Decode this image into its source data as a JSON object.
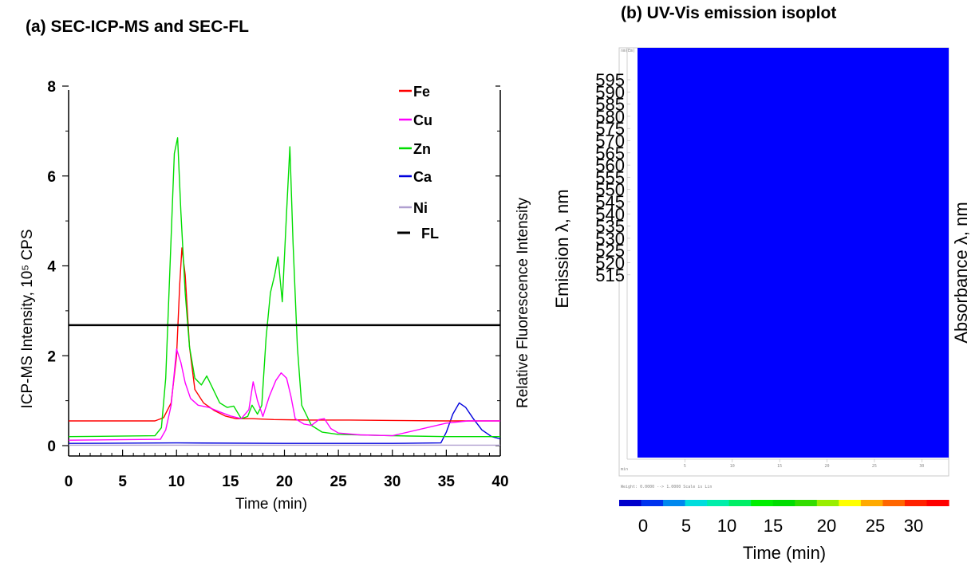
{
  "chart_data": [
    {
      "type": "line",
      "title": "(a) SEC-ICP-MS and SEC-FL",
      "xlabel": "Time (min)",
      "ylabel": "ICP-MS Intensity, 10⁵ CPS",
      "ylabel_right": "Relative Fluorescence Intensity",
      "xlim": [
        0,
        40
      ],
      "ylim": [
        0,
        8
      ],
      "x_ticks": [
        "0",
        "5",
        "10",
        "15",
        "20",
        "25",
        "30",
        "35",
        "40"
      ],
      "y_ticks": [
        "0",
        "2",
        "4",
        "6",
        "8"
      ],
      "legend_position": "top-right",
      "series": [
        {
          "name": "Fe",
          "color": "#ff0000",
          "points": [
            [
              0,
              0.55
            ],
            [
              8,
              0.55
            ],
            [
              8.8,
              0.62
            ],
            [
              9.5,
              0.95
            ],
            [
              10.0,
              2.0
            ],
            [
              10.3,
              3.6
            ],
            [
              10.5,
              4.4
            ],
            [
              10.8,
              3.8
            ],
            [
              11.2,
              2.2
            ],
            [
              11.7,
              1.25
            ],
            [
              12.5,
              0.95
            ],
            [
              13.5,
              0.78
            ],
            [
              14.5,
              0.66
            ],
            [
              15.5,
              0.6
            ],
            [
              17,
              0.6
            ],
            [
              19,
              0.58
            ],
            [
              22,
              0.57
            ],
            [
              26,
              0.57
            ],
            [
              30,
              0.56
            ],
            [
              35,
              0.55
            ],
            [
              40,
              0.55
            ]
          ]
        },
        {
          "name": "Cu",
          "color": "#ff00ff",
          "points": [
            [
              0,
              0.12
            ],
            [
              8.5,
              0.14
            ],
            [
              9.0,
              0.35
            ],
            [
              9.5,
              0.9
            ],
            [
              10.0,
              2.15
            ],
            [
              10.4,
              1.85
            ],
            [
              10.8,
              1.4
            ],
            [
              11.3,
              1.05
            ],
            [
              12,
              0.9
            ],
            [
              13,
              0.85
            ],
            [
              14,
              0.75
            ],
            [
              15,
              0.66
            ],
            [
              16,
              0.6
            ],
            [
              16.7,
              0.8
            ],
            [
              17.1,
              1.42
            ],
            [
              17.5,
              1.0
            ],
            [
              18,
              0.65
            ],
            [
              18.6,
              1.1
            ],
            [
              19.2,
              1.45
            ],
            [
              19.7,
              1.62
            ],
            [
              20.2,
              1.5
            ],
            [
              20.6,
              1.1
            ],
            [
              21.0,
              0.6
            ],
            [
              21.8,
              0.48
            ],
            [
              22.5,
              0.45
            ],
            [
              23.2,
              0.58
            ],
            [
              23.7,
              0.6
            ],
            [
              24.3,
              0.38
            ],
            [
              25,
              0.28
            ],
            [
              27,
              0.24
            ],
            [
              30,
              0.22
            ],
            [
              35,
              0.5
            ],
            [
              37,
              0.55
            ],
            [
              40,
              0.55
            ]
          ]
        },
        {
          "name": "Zn",
          "color": "#00dd00",
          "points": [
            [
              0,
              0.2
            ],
            [
              8,
              0.22
            ],
            [
              8.6,
              0.4
            ],
            [
              9.0,
              1.5
            ],
            [
              9.4,
              4.0
            ],
            [
              9.8,
              6.5
            ],
            [
              10.1,
              6.85
            ],
            [
              10.4,
              5.2
            ],
            [
              10.8,
              3.4
            ],
            [
              11.2,
              2.2
            ],
            [
              11.7,
              1.5
            ],
            [
              12.3,
              1.35
            ],
            [
              12.8,
              1.55
            ],
            [
              13.3,
              1.3
            ],
            [
              14.0,
              0.95
            ],
            [
              14.7,
              0.85
            ],
            [
              15.3,
              0.88
            ],
            [
              16.0,
              0.6
            ],
            [
              16.6,
              0.65
            ],
            [
              17.0,
              0.9
            ],
            [
              17.5,
              0.7
            ],
            [
              17.9,
              0.9
            ],
            [
              18.3,
              2.4
            ],
            [
              18.7,
              3.4
            ],
            [
              19.1,
              3.8
            ],
            [
              19.4,
              4.2
            ],
            [
              19.8,
              3.2
            ],
            [
              20.2,
              5.2
            ],
            [
              20.5,
              6.65
            ],
            [
              20.8,
              4.5
            ],
            [
              21.2,
              2.2
            ],
            [
              21.6,
              0.9
            ],
            [
              22.5,
              0.45
            ],
            [
              23.5,
              0.3
            ],
            [
              25,
              0.25
            ],
            [
              30,
              0.22
            ],
            [
              35,
              0.2
            ],
            [
              40,
              0.2
            ]
          ]
        },
        {
          "name": "Ca",
          "color": "#0000dd",
          "points": [
            [
              0,
              0.05
            ],
            [
              10,
              0.06
            ],
            [
              20,
              0.05
            ],
            [
              30,
              0.05
            ],
            [
              34.5,
              0.06
            ],
            [
              35.0,
              0.3
            ],
            [
              35.6,
              0.7
            ],
            [
              36.2,
              0.95
            ],
            [
              36.8,
              0.85
            ],
            [
              37.5,
              0.6
            ],
            [
              38.3,
              0.35
            ],
            [
              39.2,
              0.2
            ],
            [
              40,
              0.15
            ]
          ]
        },
        {
          "name": "Ni",
          "color": "#b0a0d0",
          "points": [
            [
              0,
              0.01
            ],
            [
              40,
              0.01
            ]
          ]
        },
        {
          "name": "FL",
          "color": "#000000",
          "points": [
            [
              0,
              2.68
            ],
            [
              40,
              2.68
            ]
          ]
        }
      ]
    },
    {
      "type": "heatmap",
      "title": "(b) UV-Vis emission isoplot",
      "xlabel": "Time (min)",
      "ylabel": "Emission λ, nm",
      "ylabel_right": "Absorbance λ, nm",
      "y_ticks": [
        "595",
        "590",
        "585",
        "580",
        "575",
        "570",
        "565",
        "560",
        "555",
        "550",
        "545",
        "540",
        "535",
        "530",
        "525",
        "520",
        "515"
      ],
      "inner_x_ticks": [
        "5",
        "10",
        "15",
        "20",
        "25",
        "30"
      ],
      "inner_y_label": "nm(Em)",
      "inner_x_label": "min",
      "weight_text": "Weight:   0.0000 -->   1.0000     Scale is Lin",
      "fill_color": "#0000ff",
      "colorbar": {
        "ticks": [
          "0",
          "5",
          "10",
          "15",
          "20",
          "25",
          "30"
        ],
        "colors": [
          "#0000cc",
          "#0033ee",
          "#0088ee",
          "#00dddd",
          "#00eeaa",
          "#00ee66",
          "#00ee00",
          "#00dd00",
          "#33dd00",
          "#99ee00",
          "#ffff00",
          "#ffaa00",
          "#ff6600",
          "#ff2200",
          "#ff0000"
        ]
      }
    }
  ]
}
